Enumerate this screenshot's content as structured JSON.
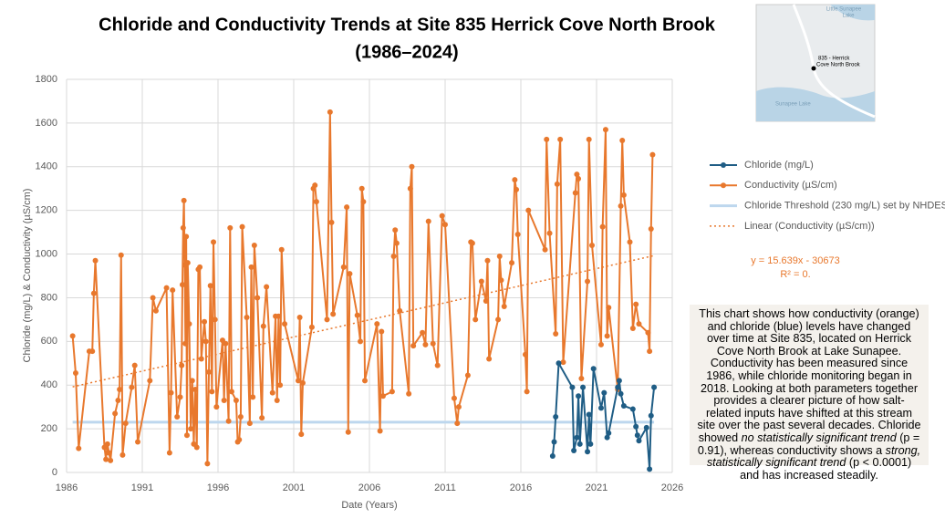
{
  "chart_data": {
    "type": "line",
    "title": [
      "Chloride and Conductivity Trends at Site 835 Herrick Cove North Brook",
      "(1986–2024)"
    ],
    "xlabel": "Date (Years)",
    "ylabel": "Chloride (mg/L) & Conductivity (µS/cm)",
    "xlim": [
      1986,
      2026
    ],
    "xticks": [
      1986,
      1991,
      1996,
      2001,
      2006,
      2011,
      2016,
      2021,
      2026
    ],
    "ylim": [
      0,
      1800
    ],
    "yticks": [
      0,
      200,
      400,
      600,
      800,
      1000,
      1200,
      1400,
      1600,
      1800
    ],
    "grid": true,
    "legend": "right",
    "series": [
      {
        "name": "Chloride (mg/L)",
        "color": "#1f5d85",
        "line_style": "solid",
        "marker": true,
        "x": [
          2018.1,
          2018.2,
          2018.3,
          2018.5,
          2019.4,
          2019.5,
          2019.7,
          2019.8,
          2019.9,
          2020.1,
          2020.4,
          2020.5,
          2020.6,
          2020.8,
          2021.3,
          2021.5,
          2021.7,
          2021.8,
          2022.4,
          2022.5,
          2022.6,
          2022.8,
          2023.4,
          2023.6,
          2023.7,
          2023.8,
          2024.3,
          2024.5,
          2024.6,
          2024.8
        ],
        "values": [
          75,
          140,
          255,
          500,
          390,
          100,
          160,
          350,
          130,
          390,
          95,
          265,
          130,
          475,
          295,
          365,
          160,
          180,
          390,
          420,
          360,
          305,
          290,
          210,
          170,
          145,
          205,
          15,
          260,
          390
        ]
      },
      {
        "name": "Conductivity (µS/cm)",
        "color": "#e8782d",
        "line_style": "solid",
        "marker": true,
        "x": [
          1986.4,
          1986.6,
          1986.8,
          1987.5,
          1987.7,
          1987.8,
          1987.9,
          1988.5,
          1988.6,
          1988.7,
          1988.8,
          1988.9,
          1989.2,
          1989.4,
          1989.5,
          1989.6,
          1989.7,
          1989.9,
          1990.3,
          1990.5,
          1990.7,
          1991.5,
          1991.7,
          1991.9,
          1992.6,
          1992.8,
          1992.9,
          1993.0,
          1993.3,
          1993.5,
          1993.6,
          1993.65,
          1993.7,
          1993.75,
          1993.8,
          1993.85,
          1993.9,
          1993.95,
          1994.0,
          1994.1,
          1994.2,
          1994.3,
          1994.4,
          1994.5,
          1994.6,
          1994.7,
          1994.8,
          1994.9,
          1995.1,
          1995.2,
          1995.3,
          1995.4,
          1995.5,
          1995.6,
          1995.7,
          1995.8,
          1995.9,
          1996.3,
          1996.4,
          1996.5,
          1996.7,
          1996.8,
          1996.9,
          1997.2,
          1997.3,
          1997.4,
          1997.5,
          1997.6,
          1997.9,
          1998.1,
          1998.2,
          1998.3,
          1998.4,
          1998.6,
          1998.9,
          1999.0,
          1999.2,
          1999.6,
          1999.8,
          1999.9,
          2000.0,
          2000.1,
          2000.2,
          2000.4,
          2001.3,
          2001.4,
          2001.5,
          2001.6,
          2002.2,
          2002.3,
          2002.4,
          2002.5,
          2003.2,
          2003.4,
          2003.5,
          2003.6,
          2004.3,
          2004.5,
          2004.6,
          2004.7,
          2005.2,
          2005.4,
          2005.5,
          2005.6,
          2005.7,
          2006.5,
          2006.7,
          2006.8,
          2006.9,
          2007.5,
          2007.6,
          2007.7,
          2007.8,
          2008.0,
          2008.6,
          2008.7,
          2008.8,
          2008.9,
          2009.5,
          2009.7,
          2009.9,
          2010.2,
          2010.5,
          2010.8,
          2011.0,
          2011.6,
          2011.8,
          2011.9,
          2012.5,
          2012.7,
          2012.8,
          2013.0,
          2013.4,
          2013.7,
          2013.8,
          2013.9,
          2014.5,
          2014.6,
          2014.7,
          2014.9,
          2015.4,
          2015.6,
          2015.7,
          2015.8,
          2016.3,
          2016.4,
          2016.5,
          2017.6,
          2017.7,
          2017.9,
          2018.3,
          2018.4,
          2018.6,
          2018.8,
          2019.6,
          2019.7,
          2019.8,
          2020.0,
          2020.4,
          2020.5,
          2020.7,
          2021.3,
          2021.4,
          2021.6,
          2021.7,
          2021.8,
          2022.4,
          2022.6,
          2022.7,
          2022.8,
          2023.2,
          2023.4,
          2023.6,
          2023.8,
          2024.4,
          2024.5,
          2024.6,
          2024.7
        ],
        "values": [
          625,
          455,
          110,
          555,
          555,
          820,
          970,
          115,
          60,
          130,
          90,
          55,
          270,
          330,
          380,
          995,
          80,
          225,
          390,
          490,
          140,
          420,
          800,
          740,
          845,
          90,
          365,
          835,
          255,
          345,
          490,
          860,
          1120,
          1245,
          950,
          590,
          1080,
          170,
          960,
          680,
          200,
          420,
          130,
          380,
          115,
          930,
          940,
          520,
          690,
          600,
          40,
          460,
          855,
          370,
          1055,
          700,
          300,
          605,
          330,
          590,
          235,
          1120,
          370,
          330,
          140,
          150,
          255,
          1125,
          710,
          225,
          940,
          345,
          1040,
          800,
          250,
          670,
          850,
          365,
          715,
          330,
          715,
          400,
          1020,
          680,
          420,
          710,
          175,
          410,
          665,
          1300,
          1315,
          1240,
          700,
          1650,
          1145,
          725,
          940,
          1215,
          185,
          910,
          720,
          600,
          1300,
          1240,
          420,
          680,
          190,
          645,
          350,
          370,
          990,
          1110,
          1050,
          740,
          360,
          1300,
          1400,
          580,
          640,
          585,
          1150,
          590,
          490,
          1175,
          1135,
          340,
          225,
          300,
          445,
          1055,
          1050,
          700,
          875,
          785,
          970,
          520,
          700,
          990,
          880,
          760,
          960,
          1340,
          1295,
          1090,
          540,
          370,
          1200,
          1020,
          1525,
          1095,
          635,
          1320,
          1525,
          505,
          1280,
          1365,
          1345,
          430,
          875,
          1525,
          1040,
          585,
          1125,
          1570,
          625,
          755,
          380,
          1220,
          1520,
          1270,
          1055,
          660,
          770,
          680,
          640,
          555,
          1115,
          1455
        ]
      },
      {
        "name": "Chloride Threshold (230 mg/L) set by NHDES",
        "color": "#bdd7ee",
        "line_style": "solid",
        "marker": false,
        "x": [
          1986.4,
          2024.8
        ],
        "values": [
          230,
          230
        ]
      },
      {
        "name": "Linear (Conductivity (µS/cm))",
        "color": "#e8782d",
        "line_style": "dotted",
        "marker": false,
        "x": [
          1986.4,
          2024.8
        ],
        "values": [
          392,
          993
        ]
      }
    ],
    "annotations": [
      "y = 15.639x - 30673",
      "R² = 0."
    ],
    "description": [
      {
        "text": "This chart shows how conductivity (orange) and chloride (blue) levels have changed over time at Site 835, located on Herrick Cove North Brook at Lake Sunapee. Conductivity has been measured since 1986, while chloride monitoring began in 2018. Looking at both parameters together provides a clearer picture of how salt-related inputs have shifted at this stream site over the past several decades. Chloride showed ",
        "italic": false
      },
      {
        "text": "no statistically significant trend",
        "italic": true
      },
      {
        "text": " (p = 0.91), whereas conductivity shows a ",
        "italic": false
      },
      {
        "text": "strong, statistically significant trend",
        "italic": true
      },
      {
        "text": " (p < 0.0001) and has increased steadily.",
        "italic": false
      }
    ]
  },
  "map": {
    "labels": [
      "Little Sunapee",
      "Lake",
      "835 - Herrick",
      "Cove North Brook",
      "Sunapee Lake"
    ]
  }
}
